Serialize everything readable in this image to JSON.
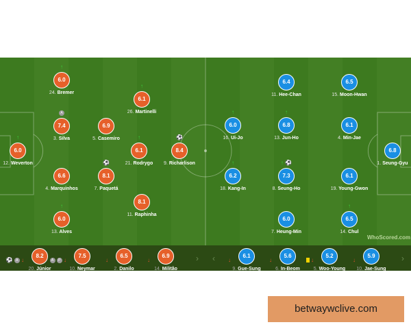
{
  "colors": {
    "brazil": "#e6602a",
    "korea": "#1a8fe3",
    "pitch": "#3d7a1f",
    "bench": "#2c4a14"
  },
  "brazil": {
    "starters": [
      {
        "num": "12.",
        "name": "Weverton",
        "rating": "6.0",
        "icons": [
          "sub-up"
        ]
      },
      {
        "num": "24.",
        "name": "Bremer",
        "rating": "6.0",
        "icons": [
          "sub-up"
        ]
      },
      {
        "num": "3.",
        "name": "Silva",
        "rating": "7.4",
        "icons": [
          "captain"
        ]
      },
      {
        "num": "5.",
        "name": "Casemiro",
        "rating": "6.9",
        "icons": []
      },
      {
        "num": "26.",
        "name": "Martinelli",
        "rating": "6.1",
        "icons": [
          "sub-up"
        ]
      },
      {
        "num": "21.",
        "name": "Rodrygo",
        "rating": "6.1",
        "icons": [
          "sub-up"
        ]
      },
      {
        "num": "9.",
        "name": "Richarlison",
        "rating": "8.4",
        "icons": [
          "goal"
        ]
      },
      {
        "num": "4.",
        "name": "Marquinhos",
        "rating": "6.6",
        "icons": []
      },
      {
        "num": "7.",
        "name": "Paquetá",
        "rating": "8.1",
        "icons": [
          "goal"
        ]
      },
      {
        "num": "11.",
        "name": "Raphinha",
        "rating": "8.1",
        "icons": []
      },
      {
        "num": "13.",
        "name": "Alves",
        "rating": "6.0",
        "icons": [
          "sub-up"
        ]
      }
    ],
    "bench": [
      {
        "num": "20.",
        "name": "Júnior",
        "rating": "8.2",
        "icons": [
          "goal",
          "assist",
          "sub-down"
        ]
      },
      {
        "num": "10.",
        "name": "Neymar",
        "rating": "7.5",
        "icons": [
          "assist",
          "penalty",
          "sub-down"
        ]
      },
      {
        "num": "2.",
        "name": "Danilo",
        "rating": "6.5",
        "icons": [
          "sub-down"
        ]
      },
      {
        "num": "14.",
        "name": "Militão",
        "rating": "6.9",
        "icons": [
          "sub-down"
        ]
      }
    ]
  },
  "korea": {
    "starters": [
      {
        "num": "11.",
        "name": "Hee-Chan",
        "rating": "6.4",
        "icons": []
      },
      {
        "num": "15.",
        "name": "Moon-Hwan",
        "rating": "6.5",
        "icons": []
      },
      {
        "num": "16.",
        "name": "Ui-Jo",
        "rating": "6.0",
        "icons": [
          "sub-up"
        ]
      },
      {
        "num": "13.",
        "name": "Jun-Ho",
        "rating": "6.8",
        "icons": [
          "sub-up"
        ]
      },
      {
        "num": "4.",
        "name": "Min-Jae",
        "rating": "6.1",
        "icons": []
      },
      {
        "num": "1.",
        "name": "Seung-Gyu",
        "rating": "6.8",
        "icons": []
      },
      {
        "num": "18.",
        "name": "Kang-In",
        "rating": "6.2",
        "icons": [
          "sub-up"
        ]
      },
      {
        "num": "8.",
        "name": "Seung-Ho",
        "rating": "7.3",
        "icons": [
          "sub-up",
          "goal"
        ]
      },
      {
        "num": "19.",
        "name": "Young-Gwon",
        "rating": "6.1",
        "icons": []
      },
      {
        "num": "7.",
        "name": "Heung-Min",
        "rating": "6.0",
        "icons": []
      },
      {
        "num": "14.",
        "name": "Chul",
        "rating": "6.5",
        "icons": [
          "sub-up"
        ]
      }
    ],
    "bench": [
      {
        "num": "9.",
        "name": "Gue-Sung",
        "rating": "6.1",
        "icons": [
          "sub-down"
        ]
      },
      {
        "num": "6.",
        "name": "In-Beom",
        "rating": "5.6",
        "icons": [
          "sub-down"
        ]
      },
      {
        "num": "5.",
        "name": "Woo-Young",
        "rating": "5.2",
        "icons": [
          "yellow-card",
          "sub-down"
        ]
      },
      {
        "num": "10.",
        "name": "Jae-Sung",
        "rating": "5.9",
        "icons": [
          "sub-down"
        ]
      }
    ]
  },
  "watermark": "WhoScored.com",
  "nav": {
    "prev": "‹",
    "next": "›"
  },
  "ad": {
    "text": "betwaywclive.com"
  }
}
